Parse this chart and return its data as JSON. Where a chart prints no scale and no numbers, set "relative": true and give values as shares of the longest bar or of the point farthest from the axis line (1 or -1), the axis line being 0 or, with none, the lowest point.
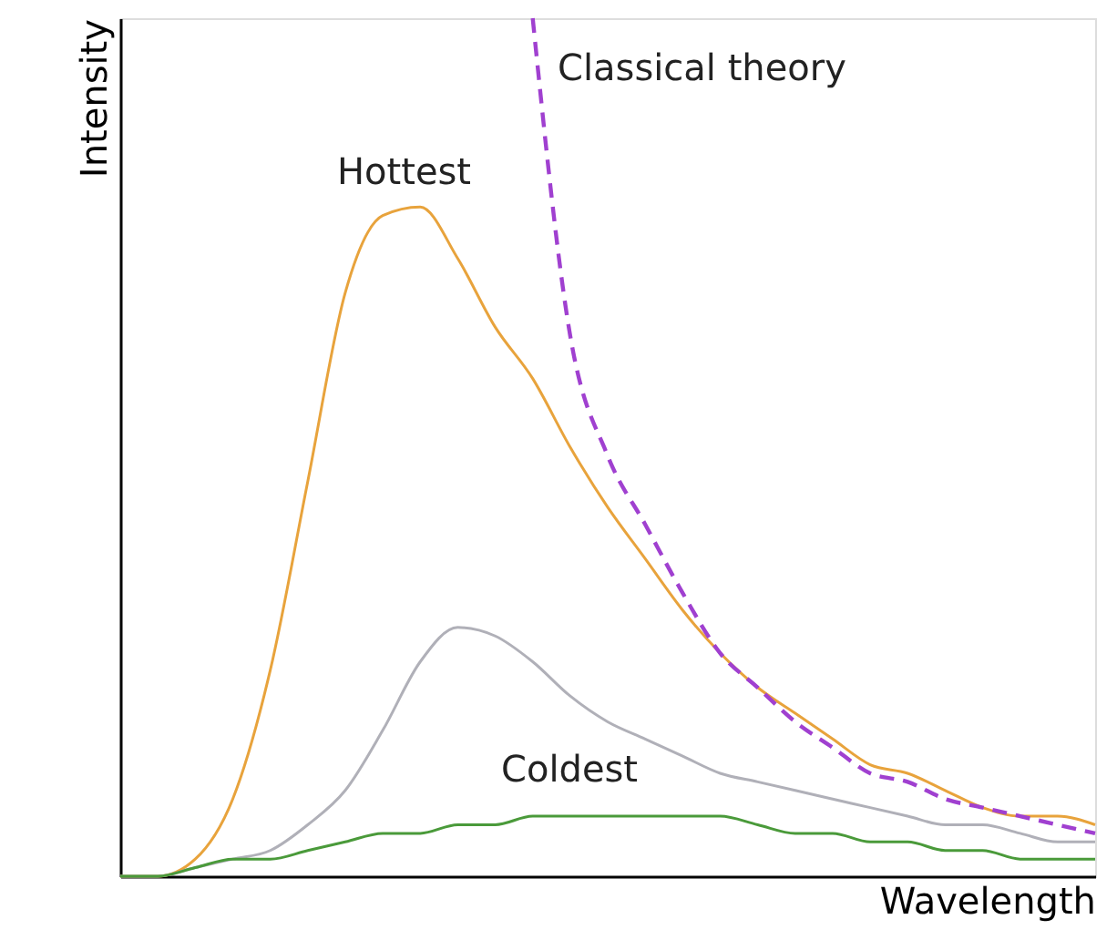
{
  "chart_data": {
    "type": "line",
    "relative": true,
    "xlabel": "Wavelength",
    "ylabel": "Intensity",
    "legend": false,
    "grid": false,
    "marker": "none",
    "categories": [
      null,
      null,
      null,
      null,
      null,
      null,
      null,
      null,
      null,
      null,
      null,
      null,
      null,
      null,
      null,
      null,
      null,
      null,
      null,
      null,
      null,
      null,
      null,
      null,
      null,
      null,
      null
    ],
    "series": [
      {
        "name": "Hottest",
        "color": "#e8a33c",
        "line_style": "solid",
        "values": [
          0,
          0.0,
          0.02,
          0.09,
          0.24,
          0.46,
          0.68,
          0.77,
          0.78,
          0.72,
          0.64,
          0.58,
          0.5,
          0.43,
          0.37,
          0.31,
          0.26,
          0.22,
          0.19,
          0.16,
          0.13,
          0.12,
          0.1,
          0.08,
          0.07,
          0.07,
          0.06
        ]
      },
      {
        "color": "#b0b0b8",
        "line_style": "solid",
        "values": [
          0,
          0.0,
          0.01,
          0.02,
          0.03,
          0.06,
          0.1,
          0.17,
          0.25,
          0.29,
          0.28,
          0.25,
          0.21,
          0.18,
          0.16,
          0.14,
          0.12,
          0.11,
          0.1,
          0.09,
          0.08,
          0.07,
          0.06,
          0.06,
          0.05,
          0.04,
          0.04
        ]
      },
      {
        "name": "Coldest",
        "color": "#4a9a3a",
        "line_style": "solid",
        "values": [
          0,
          0.0,
          0.01,
          0.02,
          0.02,
          0.03,
          0.04,
          0.05,
          0.05,
          0.06,
          0.06,
          0.07,
          0.07,
          0.07,
          0.07,
          0.07,
          0.07,
          0.06,
          0.05,
          0.05,
          0.04,
          0.04,
          0.03,
          0.03,
          0.02,
          0.02,
          0.02
        ]
      },
      {
        "name": "Classical theory",
        "color": "#a040d0",
        "line_style": "dashed",
        "values": [
          null,
          null,
          null,
          null,
          null,
          null,
          null,
          null,
          null,
          null,
          null,
          1.0,
          0.63,
          0.49,
          0.41,
          0.33,
          0.26,
          0.22,
          0.18,
          0.15,
          0.12,
          0.11,
          0.09,
          0.08,
          0.07,
          0.06,
          0.05
        ]
      }
    ]
  }
}
